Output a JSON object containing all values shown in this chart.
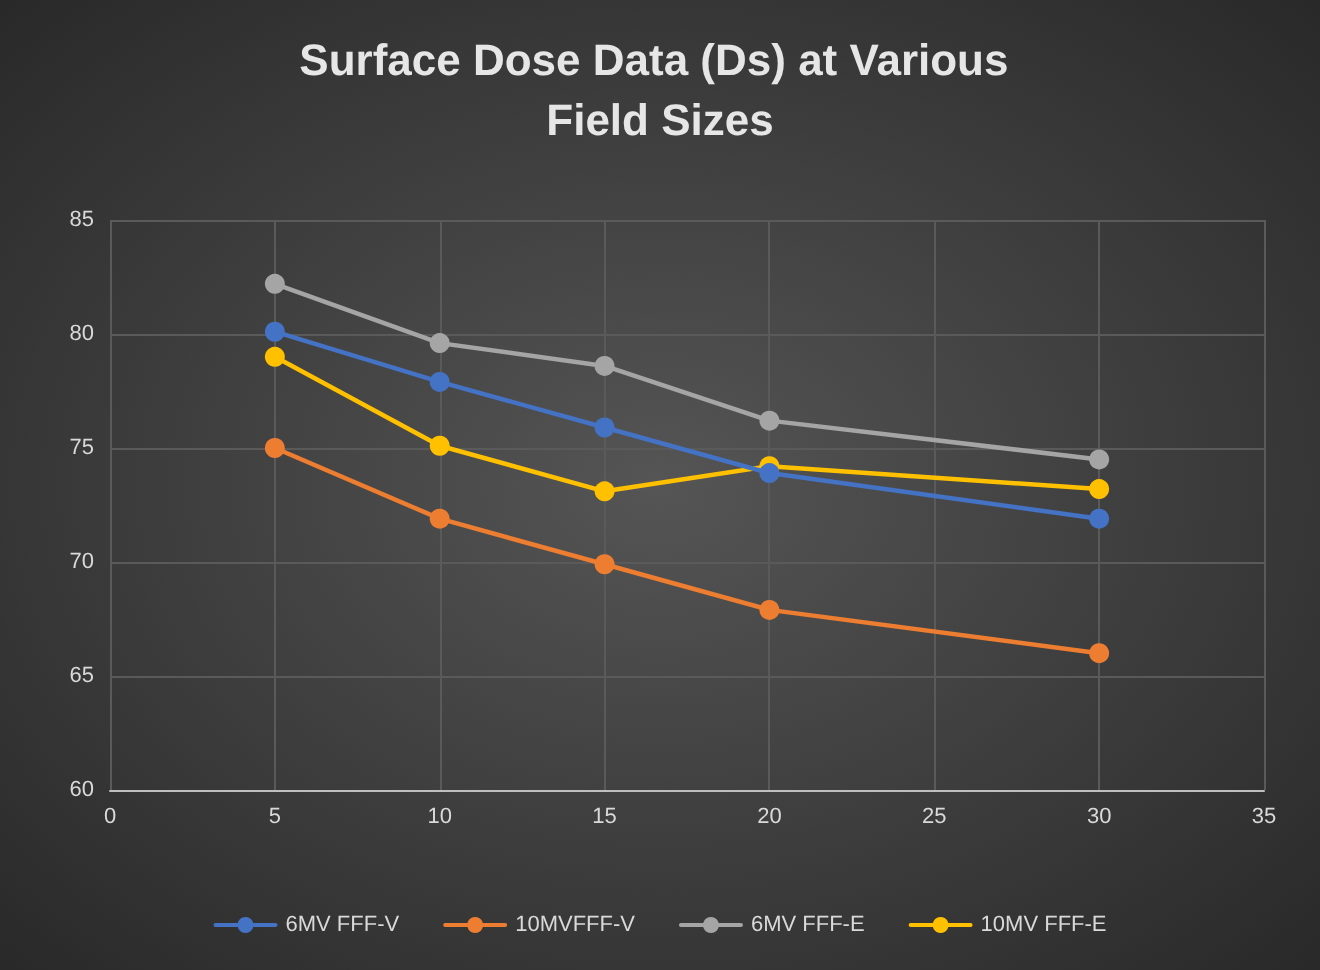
{
  "chart_data": {
    "type": "line",
    "title": "Surface Dose Data (Ds) at Various Field Sizes",
    "x": [
      5,
      10,
      15,
      20,
      30
    ],
    "series": [
      {
        "name": "6MV FFF-V",
        "color": "#4472c4",
        "values": [
          80.1,
          77.9,
          75.9,
          73.9,
          71.9
        ]
      },
      {
        "name": "10MVFFF-V",
        "color": "#ed7d31",
        "values": [
          75,
          71.9,
          69.9,
          67.9,
          66
        ]
      },
      {
        "name": "6MV FFF-E",
        "color": "#a5a5a5",
        "values": [
          82.2,
          79.6,
          78.6,
          76.2,
          74.5
        ]
      },
      {
        "name": "10MV FFF-E",
        "color": "#ffc000",
        "values": [
          79,
          75.1,
          73.1,
          74.2,
          73.2
        ]
      }
    ],
    "xlim": [
      0,
      35
    ],
    "xticks": [
      0,
      5,
      10,
      15,
      20,
      25,
      30,
      35
    ],
    "ylim": [
      60,
      85
    ],
    "yticks": [
      60,
      65,
      70,
      75,
      80,
      85
    ],
    "grid": true,
    "legend": "bottom",
    "marker": "circle",
    "line_style": "solid"
  }
}
